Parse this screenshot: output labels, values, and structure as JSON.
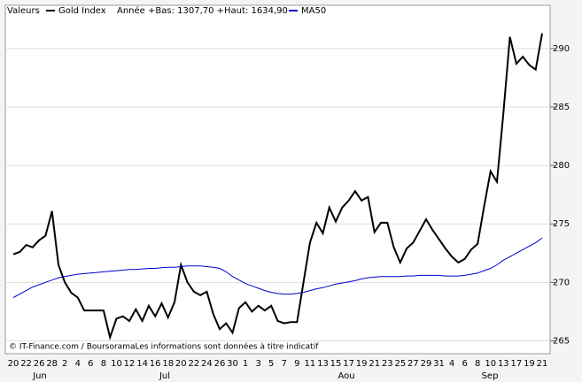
{
  "chart_data": {
    "type": "line",
    "legend_label": "Valeurs",
    "range_note": "Année +Bas: 1307,70 +Haut: 1634,90",
    "footer": "© IT-Finance.com / BoursoramaLes informations sont données à titre indicatif",
    "months": [
      "Jun",
      "Jul",
      "Aou",
      "Sep"
    ],
    "categories": [
      "20",
      null,
      "22",
      null,
      "26",
      null,
      "28",
      null,
      "2",
      null,
      "4",
      null,
      "6",
      null,
      "8",
      null,
      "10",
      null,
      "12",
      null,
      "14",
      null,
      "16",
      null,
      "18",
      null,
      "20",
      null,
      "22",
      null,
      "24",
      null,
      "26",
      null,
      "30",
      null,
      "1",
      null,
      "3",
      null,
      "5",
      null,
      "7",
      null,
      "9",
      null,
      "11",
      null,
      "13",
      null,
      "15",
      null,
      "17",
      null,
      "19",
      null,
      "21",
      null,
      "23",
      null,
      "25",
      null,
      "27",
      null,
      "29",
      null,
      "31",
      null,
      "4",
      null,
      "6",
      null,
      "8",
      null,
      "10",
      null,
      "13",
      null,
      "17",
      null,
      "19",
      null,
      "21"
    ],
    "series": [
      {
        "name": "Gold Index",
        "color": "#000000",
        "values": [
          272.4,
          272.6,
          273.2,
          273.0,
          273.6,
          274.0,
          276.1,
          271.5,
          270.0,
          269.1,
          268.7,
          267.6,
          267.6,
          267.6,
          267.6,
          265.3,
          266.9,
          267.1,
          266.7,
          267.7,
          266.7,
          268.0,
          267.1,
          268.2,
          267.0,
          268.3,
          271.5,
          270.0,
          269.2,
          268.9,
          269.2,
          267.3,
          266.0,
          266.5,
          265.7,
          267.8,
          268.3,
          267.5,
          268.0,
          267.6,
          268.0,
          266.7,
          266.5,
          266.6,
          266.6,
          270.0,
          273.4,
          275.1,
          274.2,
          276.4,
          275.2,
          276.4,
          277.0,
          277.8,
          277.0,
          277.3,
          274.3,
          275.1,
          275.1,
          273.0,
          271.7,
          272.9,
          273.4,
          274.4,
          275.4,
          274.5,
          273.7,
          272.9,
          272.2,
          271.7,
          272.0,
          272.8,
          273.3,
          276.5,
          279.5,
          278.6,
          284.5,
          291.0,
          288.7,
          289.3,
          288.6,
          288.2,
          291.3
        ]
      },
      {
        "name": "MA50",
        "color": "#0000cc",
        "values": [
          268.7,
          269.0,
          269.3,
          269.6,
          269.8,
          270.0,
          270.2,
          270.4,
          270.5,
          270.6,
          270.7,
          270.75,
          270.8,
          270.85,
          270.9,
          270.95,
          271.0,
          271.05,
          271.1,
          271.1,
          271.15,
          271.2,
          271.2,
          271.25,
          271.3,
          271.3,
          271.35,
          271.4,
          271.4,
          271.4,
          271.35,
          271.3,
          271.2,
          270.9,
          270.5,
          270.2,
          269.9,
          269.7,
          269.5,
          269.3,
          269.15,
          269.05,
          269.0,
          269.0,
          269.05,
          269.15,
          269.3,
          269.45,
          269.55,
          269.7,
          269.85,
          269.95,
          270.05,
          270.15,
          270.3,
          270.4,
          270.45,
          270.5,
          270.5,
          270.5,
          270.5,
          270.55,
          270.55,
          270.6,
          270.6,
          270.6,
          270.6,
          270.55,
          270.55,
          270.55,
          270.6,
          270.7,
          270.8,
          271.0,
          271.2,
          271.5,
          271.9,
          272.2,
          272.5,
          272.8,
          273.1,
          273.4,
          273.8
        ]
      }
    ],
    "ylim": [
      263.9,
      293.7
    ],
    "yticks": [
      265,
      270,
      275,
      280,
      285,
      290
    ],
    "grid": true
  }
}
